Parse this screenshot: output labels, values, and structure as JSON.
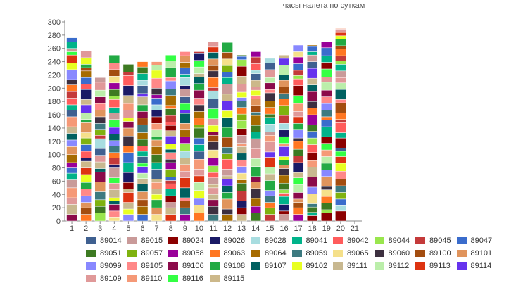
{
  "chart_data": {
    "type": "bar",
    "stacked": true,
    "title": "часы налета по суткам",
    "x": [
      "1",
      "2",
      "3",
      "4",
      "5",
      "6",
      "7",
      "8",
      "9",
      "10",
      "11",
      "12",
      "13",
      "14",
      "15",
      "16",
      "17",
      "18",
      "19",
      "20",
      "21"
    ],
    "ylim": [
      0,
      300
    ],
    "yticks": [
      0,
      20,
      40,
      60,
      80,
      100,
      120,
      140,
      160,
      180,
      200,
      220,
      240,
      260,
      280,
      300
    ],
    "grid": false,
    "totals": [
      276,
      256,
      216,
      250,
      236,
      240,
      240,
      250,
      255,
      255,
      270,
      270,
      250,
      255,
      245,
      250,
      265,
      265,
      270,
      290,
      0
    ],
    "series": [
      {
        "name": "89014",
        "color": "#3f6090"
      },
      {
        "name": "89015",
        "color": "#c99a99"
      },
      {
        "name": "89024",
        "color": "#8b0000"
      },
      {
        "name": "89026",
        "color": "#1a1a66"
      },
      {
        "name": "89028",
        "color": "#a8dde0"
      },
      {
        "name": "89041",
        "color": "#00b38a"
      },
      {
        "name": "89042",
        "color": "#ff5c5c"
      },
      {
        "name": "89044",
        "color": "#99e64d"
      },
      {
        "name": "89045",
        "color": "#c43a3a"
      },
      {
        "name": "89047",
        "color": "#3a6ccc"
      },
      {
        "name": "89051",
        "color": "#3d7a22"
      },
      {
        "name": "89057",
        "color": "#7fb20f"
      },
      {
        "name": "89058",
        "color": "#990099"
      },
      {
        "name": "89063",
        "color": "#ff7722"
      },
      {
        "name": "89064",
        "color": "#a66b00"
      },
      {
        "name": "89059",
        "color": "#3d7a80"
      },
      {
        "name": "89065",
        "color": "#f5e08a"
      },
      {
        "name": "89060",
        "color": "#3d3040"
      },
      {
        "name": "89100",
        "color": "#a34d10"
      },
      {
        "name": "89101",
        "color": "#e0945c"
      },
      {
        "name": "89099",
        "color": "#8888ff"
      },
      {
        "name": "89105",
        "color": "#ff8888"
      },
      {
        "name": "89106",
        "color": "#8b0a4a"
      },
      {
        "name": "89108",
        "color": "#22aa44"
      },
      {
        "name": "89107",
        "color": "#006060"
      },
      {
        "name": "89102",
        "color": "#e8ff22"
      },
      {
        "name": "89111",
        "color": "#c8b890"
      },
      {
        "name": "89112",
        "color": "#bbeeaa"
      },
      {
        "name": "89113",
        "color": "#dd3311"
      },
      {
        "name": "89114",
        "color": "#6633ee"
      },
      {
        "name": "89109",
        "color": "#e09999"
      },
      {
        "name": "89110",
        "color": "#f59977"
      },
      {
        "name": "89116",
        "color": "#33ff44"
      },
      {
        "name": "89115",
        "color": "#ccb88a"
      }
    ]
  }
}
